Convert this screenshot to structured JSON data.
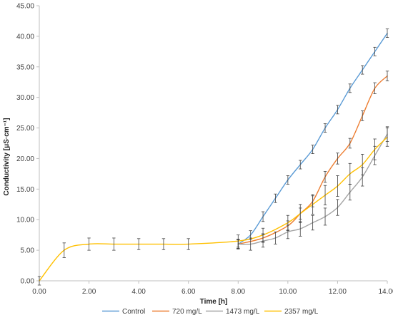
{
  "chart_data": {
    "type": "line",
    "xlabel": "Time [h]",
    "ylabel": "Conductivity [μS·cm⁻¹]",
    "xlim": [
      0,
      14
    ],
    "ylim": [
      0,
      45
    ],
    "x_ticks": [
      "0.00",
      "2.00",
      "4.00",
      "6.00",
      "8.00",
      "10.00",
      "12.00",
      "14.00"
    ],
    "y_ticks": [
      "0.00",
      "5.00",
      "10.00",
      "15.00",
      "20.00",
      "25.00",
      "30.00",
      "35.00",
      "40.00",
      "45.00"
    ],
    "grid": false,
    "legend_position": "bottom",
    "series": [
      {
        "name": "Control",
        "color": "#5B9BD5",
        "x": [
          8,
          8.5,
          9,
          9.5,
          10,
          10.5,
          11,
          11.5,
          12,
          12.5,
          13,
          13.5,
          14
        ],
        "y": [
          6.0,
          7.5,
          10.5,
          13.5,
          16.5,
          19.0,
          21.5,
          25.0,
          28.0,
          31.5,
          34.5,
          37.5,
          40.5
        ],
        "err": [
          0.7,
          0.7,
          0.8,
          0.7,
          0.7,
          0.7,
          0.7,
          0.7,
          0.7,
          0.7,
          0.7,
          0.7,
          0.7
        ]
      },
      {
        "name": "720 mg/L",
        "color": "#ED7D31",
        "x": [
          8,
          9,
          10,
          10.5,
          11,
          11.5,
          12,
          12.5,
          13,
          13.5,
          14
        ],
        "y": [
          6.0,
          7.0,
          9.0,
          11.0,
          13.0,
          17.0,
          20.0,
          22.5,
          27.0,
          31.5,
          33.5
        ],
        "err": [
          0.7,
          0.7,
          0.8,
          0.9,
          0.9,
          0.9,
          0.9,
          0.8,
          0.8,
          0.9,
          0.8
        ]
      },
      {
        "name": "1473 mg/L",
        "color": "#A5A5A5",
        "x": [
          8,
          8.5,
          9,
          9.5,
          10,
          10.5,
          11,
          11.5,
          12,
          12.5,
          13,
          13.5,
          14
        ],
        "y": [
          6.0,
          6.0,
          6.5,
          7.0,
          8.0,
          8.5,
          9.5,
          10.5,
          12.0,
          14.5,
          17.0,
          20.5,
          24.0
        ],
        "err": [
          0.8,
          1.0,
          1.0,
          1.0,
          1.1,
          1.2,
          1.2,
          1.4,
          1.3,
          1.3,
          1.5,
          1.5,
          1.2
        ]
      },
      {
        "name": "2357 mg/L",
        "color": "#FFC000",
        "x": [
          0,
          1,
          2,
          3,
          4,
          5,
          6,
          8,
          9,
          10,
          10.5,
          11,
          11.5,
          12,
          12.5,
          13,
          13.5,
          14
        ],
        "y": [
          0.0,
          5.0,
          6.0,
          6.0,
          6.0,
          6.0,
          6.0,
          6.5,
          7.5,
          9.5,
          11.0,
          12.5,
          14.0,
          15.5,
          17.5,
          19.0,
          21.5,
          23.5
        ],
        "err": [
          0.7,
          1.2,
          1.0,
          1.0,
          0.9,
          0.9,
          0.9,
          1.0,
          1.1,
          1.2,
          1.5,
          1.6,
          1.6,
          1.7,
          1.7,
          1.7,
          1.7,
          1.5
        ]
      }
    ]
  }
}
